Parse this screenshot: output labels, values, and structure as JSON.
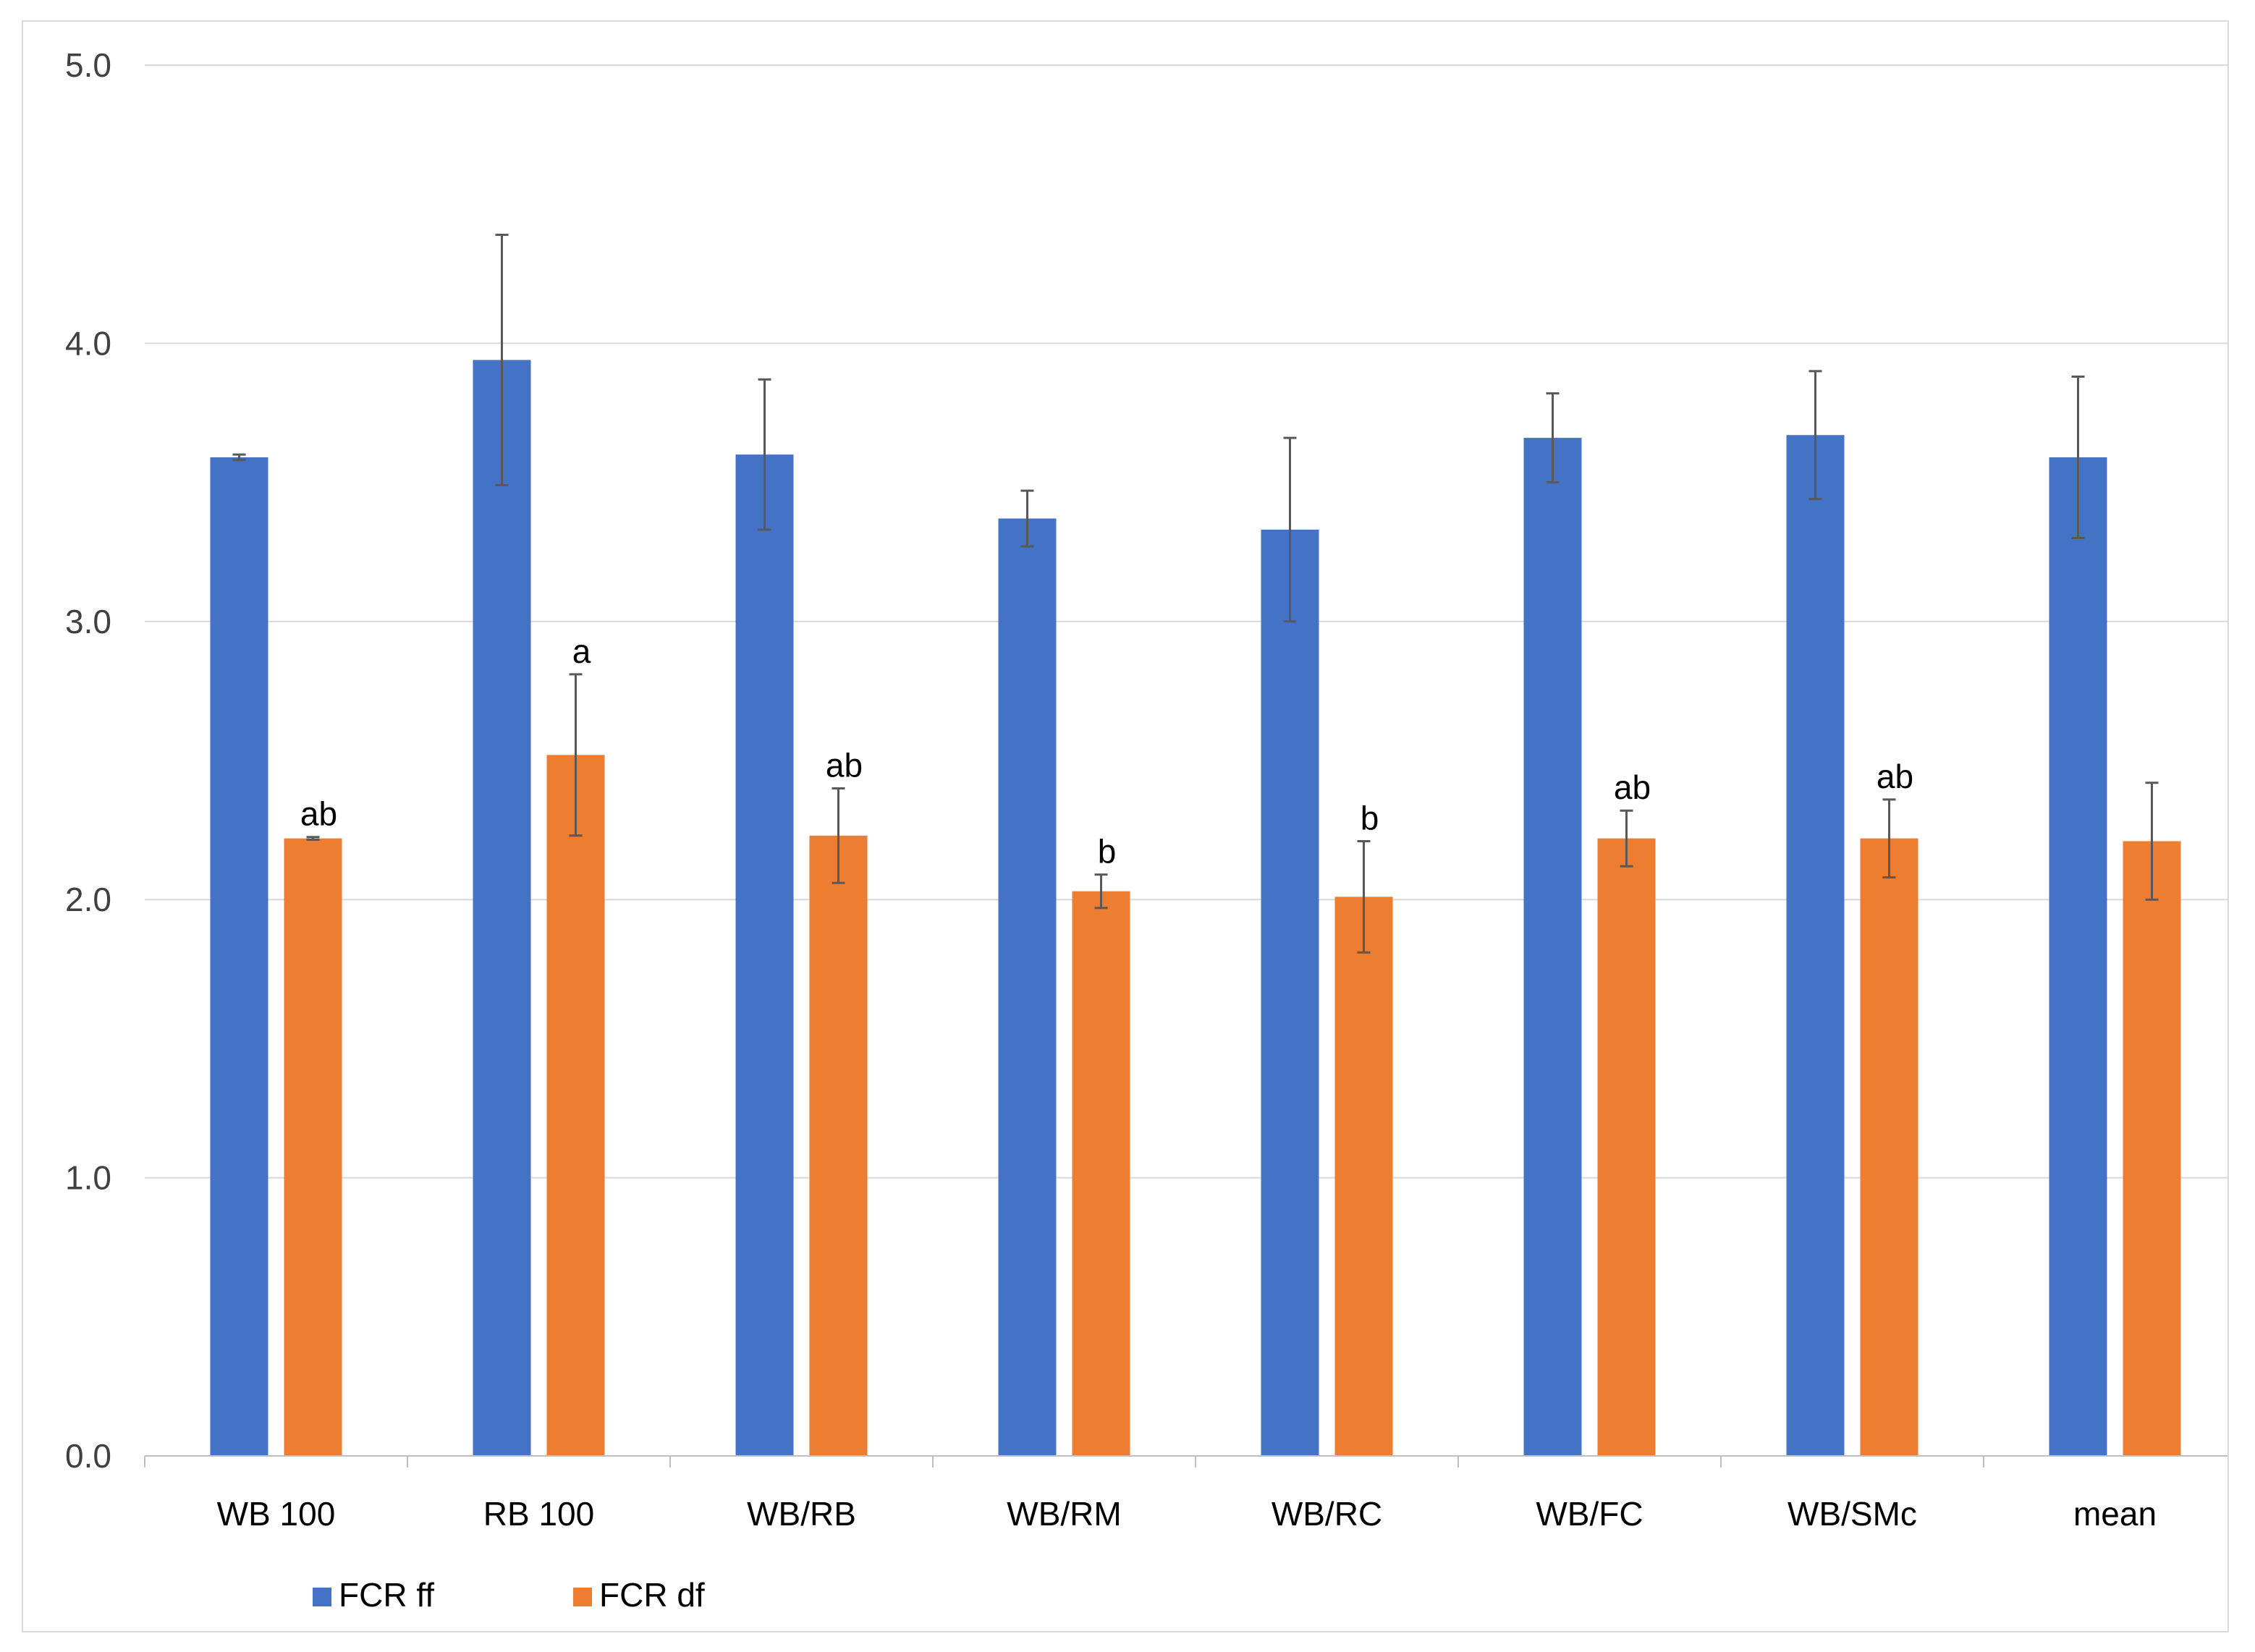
{
  "chart_data": {
    "type": "bar",
    "title": "",
    "xlabel": "",
    "ylabel": "",
    "ylim": [
      0,
      5
    ],
    "yticks": [
      "0.0",
      "1.0",
      "2.0",
      "3.0",
      "4.0",
      "5.0"
    ],
    "grid": true,
    "legend_position": "bottom-left",
    "categories": [
      "WB 100",
      "RB 100",
      "WB/RB",
      "WB/RM",
      "WB/RC",
      "WB/FC",
      "WB/SMc",
      "mean"
    ],
    "series": [
      {
        "name": "FCR ff",
        "color": "#4472C4",
        "values": [
          3.59,
          3.94,
          3.6,
          3.37,
          3.33,
          3.66,
          3.67,
          3.59
        ],
        "errors": [
          0.01,
          0.45,
          0.27,
          0.1,
          0.33,
          0.16,
          0.23,
          0.29
        ],
        "labels": [
          "",
          "",
          "",
          "",
          "",
          "",
          "",
          ""
        ]
      },
      {
        "name": "FCR df",
        "color": "#ED7D31",
        "values": [
          2.22,
          2.52,
          2.23,
          2.03,
          2.01,
          2.22,
          2.22,
          2.21
        ],
        "errors": [
          0.005,
          0.29,
          0.17,
          0.06,
          0.2,
          0.1,
          0.14,
          0.21
        ],
        "labels": [
          "ab",
          "a",
          "ab",
          "b",
          "b",
          "ab",
          "ab",
          ""
        ]
      }
    ]
  }
}
